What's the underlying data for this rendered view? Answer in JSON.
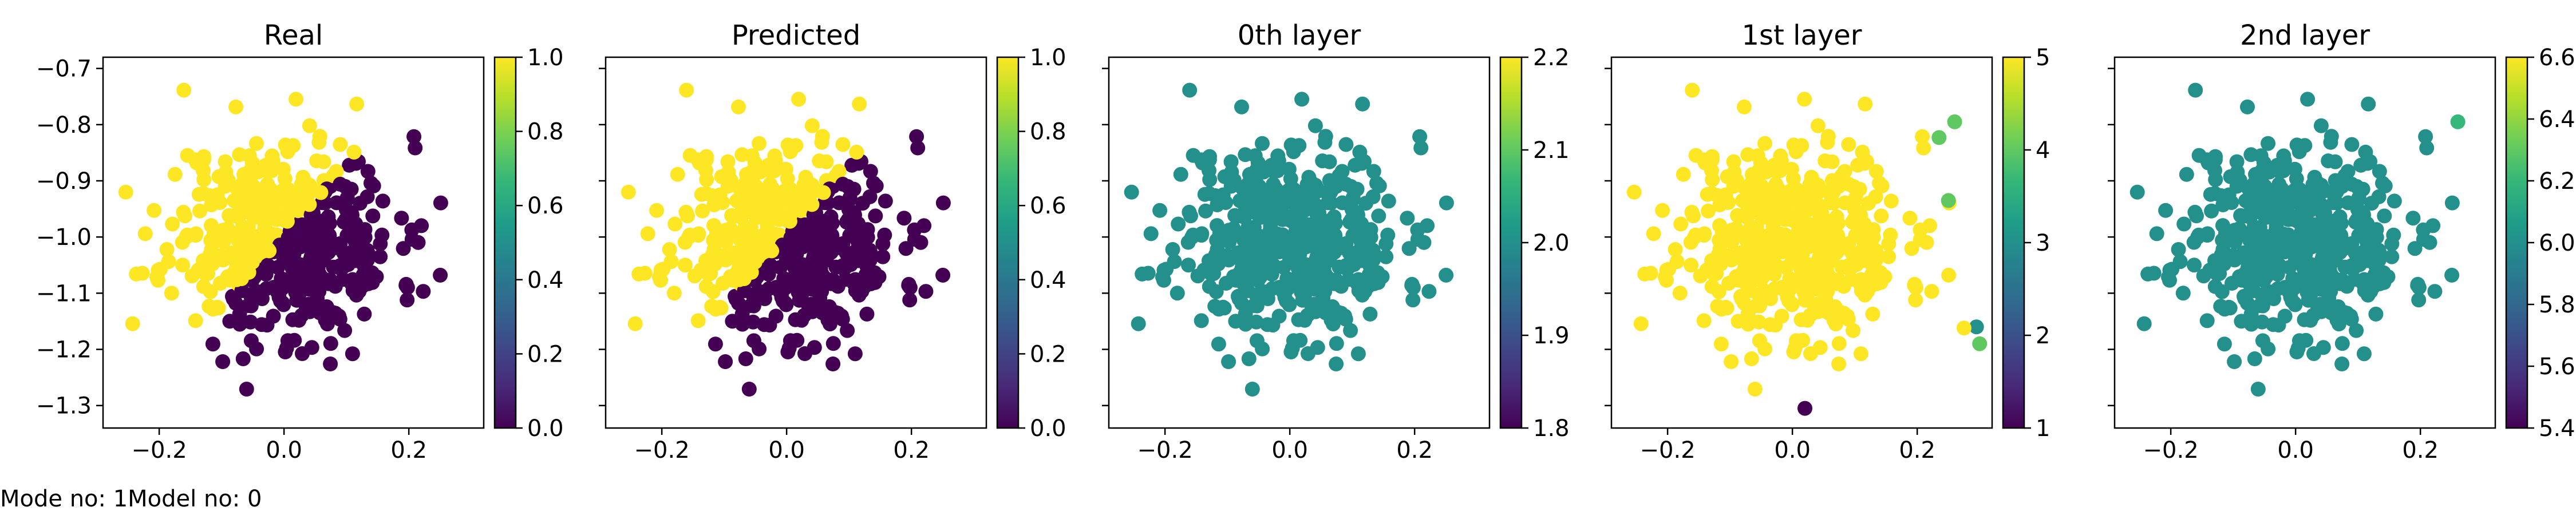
{
  "caption": "Mode no: 1Model no: 0",
  "colormap": [
    "#440154",
    "#482878",
    "#3e4989",
    "#31688e",
    "#26828e",
    "#1f9e89",
    "#35b779",
    "#6ece58",
    "#b5de2b",
    "#fde725"
  ],
  "chart_data": [
    {
      "type": "scatter",
      "title": "Real",
      "xlim": [
        -0.29,
        0.32
      ],
      "ylim": [
        -1.34,
        -0.68
      ],
      "xticks": [
        "−0.2",
        "0.0",
        "0.2"
      ],
      "xtick_values": [
        -0.2,
        0.0,
        0.2
      ],
      "yticks": [
        "−0.7",
        "−0.8",
        "−0.9",
        "−1.0",
        "−1.1",
        "−1.2",
        "−1.3"
      ],
      "ytick_values": [
        -0.7,
        -0.8,
        -0.9,
        -1.0,
        -1.1,
        -1.2,
        -1.3
      ],
      "colorbar": {
        "min": 0.0,
        "max": 1.0,
        "ticks": [
          "0.0",
          "0.2",
          "0.4",
          "0.6",
          "0.8",
          "1.0"
        ],
        "tick_values": [
          0.0,
          0.2,
          0.4,
          0.6,
          0.8,
          1.0
        ]
      },
      "coloring": "class",
      "seed": 11
    },
    {
      "type": "scatter",
      "title": "Predicted",
      "xlim": [
        -0.29,
        0.32
      ],
      "ylim": [
        -1.34,
        -0.68
      ],
      "xticks": [
        "−0.2",
        "0.0",
        "0.2"
      ],
      "xtick_values": [
        -0.2,
        0.0,
        0.2
      ],
      "yticks": [],
      "ytick_values": [
        -0.7,
        -0.8,
        -0.9,
        -1.0,
        -1.1,
        -1.2,
        -1.3
      ],
      "colorbar": {
        "min": 0.0,
        "max": 1.0,
        "ticks": [
          "0.0",
          "0.2",
          "0.4",
          "0.6",
          "0.8",
          "1.0"
        ],
        "tick_values": [
          0.0,
          0.2,
          0.4,
          0.6,
          0.8,
          1.0
        ]
      },
      "coloring": "class",
      "seed": 11
    },
    {
      "type": "scatter",
      "title": "0th layer",
      "xlim": [
        -0.29,
        0.32
      ],
      "ylim": [
        -1.34,
        -0.68
      ],
      "xticks": [
        "−0.2",
        "0.0",
        "0.2"
      ],
      "xtick_values": [
        -0.2,
        0.0,
        0.2
      ],
      "yticks": [],
      "ytick_values": [
        -0.7,
        -0.8,
        -0.9,
        -1.0,
        -1.1,
        -1.2,
        -1.3
      ],
      "colorbar": {
        "min": 1.8,
        "max": 2.2,
        "ticks": [
          "1.8",
          "1.9",
          "2.0",
          "2.1",
          "2.2"
        ],
        "tick_values": [
          1.8,
          1.9,
          2.0,
          2.1,
          2.2
        ]
      },
      "coloring": "constant",
      "constant_value": 2.0,
      "seed": 11
    },
    {
      "type": "scatter",
      "title": "1st layer",
      "xlim": [
        -0.29,
        0.32
      ],
      "ylim": [
        -1.34,
        -0.68
      ],
      "xticks": [
        "−0.2",
        "0.0",
        "0.2"
      ],
      "xtick_values": [
        -0.2,
        0.0,
        0.2
      ],
      "yticks": [],
      "ytick_values": [
        -0.7,
        -0.8,
        -0.9,
        -1.0,
        -1.1,
        -1.2,
        -1.3
      ],
      "colorbar": {
        "min": 1.0,
        "max": 5.0,
        "ticks": [
          "1",
          "2",
          "3",
          "4",
          "5"
        ],
        "tick_values": [
          1,
          2,
          3,
          4,
          5
        ]
      },
      "coloring": "constant",
      "constant_value": 5.0,
      "seed": 11,
      "extra_points": [
        {
          "x": 0.26,
          "y": -0.795,
          "value": 4.0
        },
        {
          "x": 0.235,
          "y": -0.823,
          "value": 4.0
        },
        {
          "x": 0.25,
          "y": -0.935,
          "value": 4.0
        },
        {
          "x": 0.295,
          "y": -1.16,
          "value": 3.0
        },
        {
          "x": 0.3,
          "y": -1.19,
          "value": 4.0
        },
        {
          "x": 0.275,
          "y": -1.162,
          "value": 5.0
        },
        {
          "x": 0.02,
          "y": -1.305,
          "value": 1.0
        }
      ]
    },
    {
      "type": "scatter",
      "title": "2nd layer",
      "xlim": [
        -0.29,
        0.32
      ],
      "ylim": [
        -1.34,
        -0.68
      ],
      "xticks": [
        "−0.2",
        "0.0",
        "0.2"
      ],
      "xtick_values": [
        -0.2,
        0.0,
        0.2
      ],
      "yticks": [],
      "ytick_values": [
        -0.7,
        -0.8,
        -0.9,
        -1.0,
        -1.1,
        -1.2,
        -1.3
      ],
      "colorbar": {
        "min": 5.4,
        "max": 6.6,
        "ticks": [
          "5.4",
          "5.6",
          "5.8",
          "6.0",
          "6.2",
          "6.4",
          "6.6"
        ],
        "tick_values": [
          5.4,
          5.6,
          5.8,
          6.0,
          6.2,
          6.4,
          6.6
        ]
      },
      "coloring": "constant",
      "constant_value": 6.0,
      "seed": 11,
      "extra_points": [
        {
          "x": 0.26,
          "y": -0.795,
          "value": 6.2
        }
      ]
    }
  ]
}
